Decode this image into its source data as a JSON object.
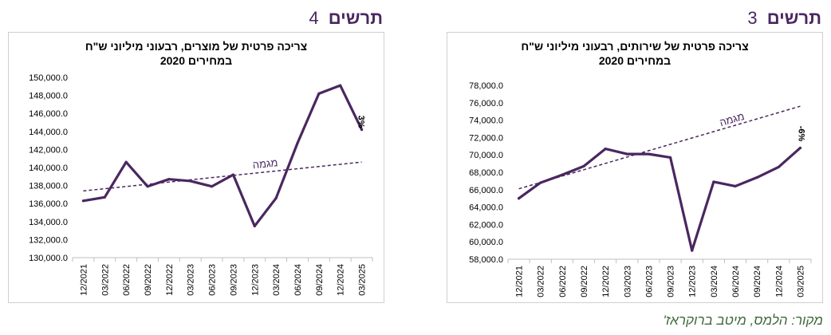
{
  "headings": [
    {
      "word": "תרשים",
      "num": "4"
    },
    {
      "word": "תרשים",
      "num": "3"
    }
  ],
  "source": "מקור: הלמס, מיטב ברוקראז'",
  "chart_data": [
    {
      "type": "line",
      "title": "צריכה פרטית של מוצרים, רבעוני מיליוני ש\"ח",
      "subtitle": "במחירים 2020",
      "categories": [
        "12/2021",
        "03/2022",
        "06/2022",
        "09/2022",
        "12/2022",
        "03/2023",
        "06/2023",
        "09/2023",
        "12/2023",
        "03/2024",
        "06/2024",
        "09/2024",
        "12/2024",
        "03/2025"
      ],
      "values": [
        136300,
        136700,
        140600,
        137900,
        138700,
        138500,
        137900,
        139200,
        133500,
        136600,
        142700,
        148200,
        149100,
        144200
      ],
      "ylim": [
        130000,
        150000
      ],
      "yticks": [
        "130,000.0",
        "132,000.0",
        "134,000.0",
        "136,000.0",
        "138,000.0",
        "140,000.0",
        "142,000.0",
        "144,000.0",
        "146,000.0",
        "148,000.0",
        "150,000.0"
      ],
      "trend": {
        "label": "מגמה",
        "start": 137400,
        "end": 140600
      },
      "annotation": "3%",
      "line_color": "#4a2760",
      "grid": false
    },
    {
      "type": "line",
      "title": "צריכה פרטית של שירותים, רבעוני מיליוני ש\"ח",
      "subtitle": "במחירים 2020",
      "categories": [
        "12/2021",
        "03/2022",
        "06/2022",
        "09/2022",
        "12/2022",
        "03/2023",
        "06/2023",
        "09/2023",
        "12/2023",
        "03/2024",
        "06/2024",
        "09/2024",
        "12/2024",
        "03/2025"
      ],
      "values": [
        65000,
        66800,
        67700,
        68700,
        70700,
        70100,
        70100,
        69700,
        59000,
        66900,
        66400,
        67400,
        68600,
        70800
      ],
      "ylim": [
        58000,
        78000
      ],
      "yticks": [
        "58,000.0",
        "60,000.0",
        "62,000.0",
        "64,000.0",
        "66,000.0",
        "68,000.0",
        "70,000.0",
        "72,000.0",
        "74,000.0",
        "76,000.0",
        "78,000.0"
      ],
      "trend": {
        "label": "מגמה",
        "start": 66100,
        "end": 75600
      },
      "annotation": "-6%",
      "line_color": "#4a2760",
      "grid": false
    }
  ]
}
